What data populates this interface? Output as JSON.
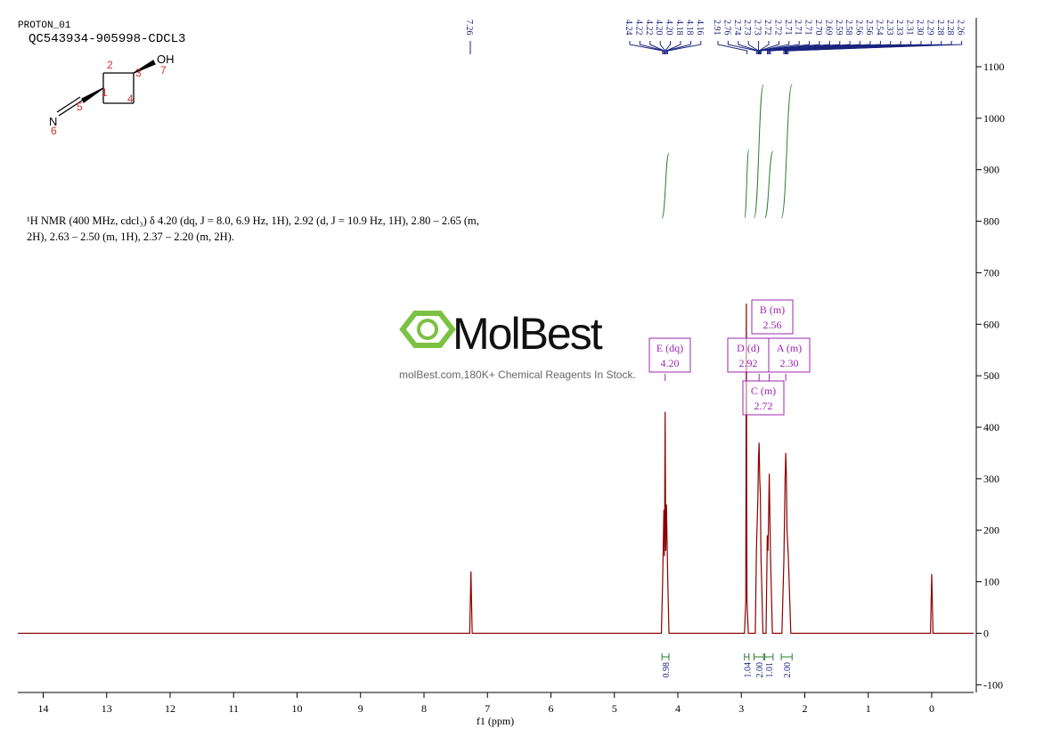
{
  "header": {
    "experiment": "PROTON_01",
    "sample": "QC543934-905998-CDCL3"
  },
  "molecule": {
    "atoms": [
      "OH",
      "N"
    ],
    "numbers": [
      1,
      2,
      3,
      4,
      5,
      6,
      7
    ]
  },
  "description": [
    "¹H NMR (400 MHz, cdcl₃) δ 4.20 (dq, J = 8.0, 6.9 Hz, 1H), 2.92 (d, J = 10.9 Hz, 1H), 2.80 – 2.65 (m,",
    "2H), 2.63 – 2.50 (m, 1H), 2.37 – 2.20 (m, 2H)."
  ],
  "watermark": {
    "brand": "MolBest",
    "tagline": "molBest.com,180K+ Chemical Reagents In Stock."
  },
  "chart_data": {
    "type": "line",
    "color": "#8b0000",
    "xlabel": "f1 (ppm)",
    "x": [
      14.4,
      7.28,
      7.26,
      7.24,
      4.26,
      4.24,
      4.22,
      4.21,
      4.2,
      4.19,
      4.18,
      4.16,
      4.14,
      2.95,
      2.93,
      2.92,
      2.91,
      2.89,
      2.78,
      2.76,
      2.74,
      2.73,
      2.72,
      2.71,
      2.7,
      2.69,
      2.66,
      2.61,
      2.59,
      2.58,
      2.56,
      2.54,
      2.51,
      2.36,
      2.33,
      2.31,
      2.3,
      2.29,
      2.28,
      2.26,
      2.22,
      0.02,
      0,
      -0.02,
      -0.66
    ],
    "values": [
      0,
      0,
      120,
      0,
      0,
      100,
      240,
      150,
      430,
      160,
      250,
      110,
      0,
      0,
      60,
      640,
      60,
      0,
      0,
      170,
      260,
      340,
      370,
      300,
      270,
      150,
      0,
      0,
      190,
      160,
      310,
      150,
      0,
      0,
      140,
      300,
      350,
      310,
      200,
      150,
      0,
      0,
      115,
      0,
      0
    ],
    "xlim": [
      14.4,
      -0.66
    ],
    "ylim": [
      -115,
      1195
    ],
    "xticks": [
      14,
      13,
      12,
      11,
      10,
      9,
      8,
      7,
      6,
      5,
      4,
      3,
      2,
      1,
      0
    ],
    "yticks": [
      -100,
      0,
      100,
      200,
      300,
      400,
      500,
      600,
      700,
      800,
      900,
      1000,
      1100
    ],
    "peak_groups": [
      [
        7.26
      ],
      [
        4.24,
        4.22,
        4.22,
        {
          "value": 4.2,
          "label": "4.20"
        },
        {
          "value": 4.2,
          "label": "4.20"
        },
        4.18,
        4.18,
        4.16
      ],
      [
        2.91,
        2.76,
        2.74,
        2.73,
        2.73,
        2.72,
        2.72,
        2.71,
        2.71,
        2.71,
        {
          "value": 2.7,
          "label": "2.70"
        },
        2.69,
        2.59,
        2.58,
        2.56,
        2.56,
        2.54,
        2.33,
        2.33,
        2.31,
        {
          "value": 2.3,
          "label": "2.30"
        },
        2.29,
        2.28,
        2.28,
        2.26
      ]
    ],
    "multiplets": {
      "names": [
        "E (dq)",
        "D (d)",
        "C (m)",
        "B (m)",
        "A (m)"
      ],
      "values": [
        4.2,
        2.92,
        2.72,
        2.56,
        2.3
      ],
      "value_labels": [
        "4.20",
        "2.92",
        "2.72",
        "2.56",
        "2.30"
      ]
    },
    "integrals": {
      "values": [
        0.98,
        1.04,
        2,
        1.01,
        2
      ],
      "value_labels": [
        "0.98",
        "1.04",
        "2.00",
        "1.01",
        "2.00"
      ],
      "ranges": [
        [
          4.25,
          4.14
        ],
        [
          2.95,
          2.88
        ],
        [
          2.8,
          2.65
        ],
        [
          2.63,
          2.5
        ],
        [
          2.37,
          2.2
        ]
      ]
    }
  }
}
